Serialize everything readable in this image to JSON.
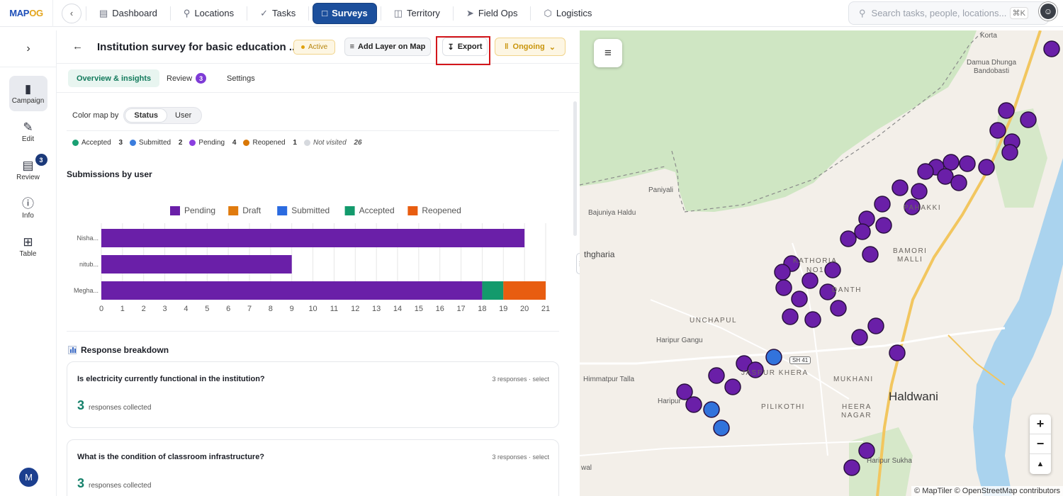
{
  "app": {
    "logo_a": "MAP",
    "logo_b": "OG"
  },
  "nav": {
    "items": [
      {
        "label": "Dashboard",
        "icon": "chart-bar-icon"
      },
      {
        "label": "Locations",
        "icon": "pin-icon"
      },
      {
        "label": "Tasks",
        "icon": "check-icon"
      },
      {
        "label": "Surveys",
        "icon": "clipboard-icon",
        "active": true
      },
      {
        "label": "Territory",
        "icon": "map-icon"
      },
      {
        "label": "Field Ops",
        "icon": "send-icon"
      },
      {
        "label": "Logistics",
        "icon": "box-icon"
      }
    ],
    "search_placeholder": "Search tasks, people, locations...",
    "shortcut": "⌘K"
  },
  "rail": {
    "items": [
      {
        "label": "Campaign",
        "icon": "clipboard-icon",
        "active": true
      },
      {
        "label": "Edit",
        "icon": "edit-icon"
      },
      {
        "label": "Review",
        "icon": "document-icon",
        "badge": "3"
      },
      {
        "label": "Info",
        "icon": "info-icon"
      },
      {
        "label": "Table",
        "icon": "grid-icon"
      }
    ],
    "user_initial": "M"
  },
  "survey": {
    "title": "Institution survey for basic education ...",
    "status": "Active",
    "add_layer": "Add Layer on Map",
    "export": "Export",
    "phase": "Ongoing"
  },
  "tabs": [
    {
      "label": "Overview & insights",
      "active": true
    },
    {
      "label": "Review",
      "badge": "3"
    },
    {
      "label": "Settings"
    }
  ],
  "colorby": {
    "label": "Color map by",
    "options": [
      "Status",
      "User"
    ],
    "selected": "Status"
  },
  "status_legend": [
    {
      "label": "Accepted",
      "count": "3",
      "color": "#1aa073"
    },
    {
      "label": "Submitted",
      "count": "2",
      "color": "#3b7ddd"
    },
    {
      "label": "Pending",
      "count": "4",
      "color": "#8b3fe0"
    },
    {
      "label": "Reopened",
      "count": "1",
      "color": "#d97706"
    },
    {
      "label": "Not visited",
      "count": "26",
      "color": "#d6d9de"
    }
  ],
  "submissions_title": "Submissions by user",
  "chart_data": {
    "type": "bar",
    "orientation": "horizontal",
    "stacked": true,
    "categories": [
      "Nisha...",
      "nitub...",
      "Megha..."
    ],
    "series": [
      {
        "name": "Pending",
        "color": "#6a1fa8",
        "values": [
          20,
          9,
          18
        ]
      },
      {
        "name": "Draft",
        "color": "#e07b0e",
        "values": [
          0,
          0,
          0
        ]
      },
      {
        "name": "Submitted",
        "color": "#2b6be0",
        "values": [
          0,
          0,
          0
        ]
      },
      {
        "name": "Accepted",
        "color": "#139a6c",
        "values": [
          0,
          0,
          1
        ]
      },
      {
        "name": "Reopened",
        "color": "#e85d10",
        "values": [
          0,
          0,
          2
        ]
      }
    ],
    "xlim": [
      0,
      21
    ],
    "xticks": [
      0,
      1,
      2,
      3,
      4,
      5,
      6,
      7,
      8,
      9,
      10,
      11,
      12,
      13,
      14,
      15,
      16,
      17,
      18,
      19,
      20,
      21
    ],
    "grid": true,
    "legend": "top"
  },
  "breakdown": {
    "title": "Response breakdown",
    "questions": [
      {
        "text": "Is electricity currently functional in the institution?",
        "meta": "3 responses · select",
        "count": "3",
        "count_label": "responses collected"
      },
      {
        "text": "What is the condition of classroom infrastructure?",
        "meta": "3 responses · select",
        "count": "3",
        "count_label": "responses collected"
      }
    ]
  },
  "map": {
    "labels": {
      "korta": "Korta",
      "damua": "Damua Dhunga",
      "bandobasti": "Bandobasti",
      "paniyali": "Paniyali",
      "bajuniya": "Bajuniya Haldu",
      "thgharia": "thgharia",
      "pahakki": "PAHAKKI",
      "kathoria": "KATHORIA",
      "no1": "NO1",
      "bamori": "BAMORI",
      "malli": "MALLI",
      "danth": "DANTH",
      "unchapul": "UNCHAPUL",
      "haripur_gangu": "Haripur Gangu",
      "sh41": "SH 41",
      "himmatpur": "Himmatpur Talla",
      "jaspur": "JASPUR KHERA",
      "mukhani": "MUKHANI",
      "haripur": "Haripur",
      "pilikothi": "PILIKOTHI",
      "heera": "HEERA",
      "nagar": "NAGAR",
      "haldwani": "Haldwani",
      "haripur_sukha": "Haripur Sukha",
      "wal": "wal"
    },
    "attribution": "© MapTiler © OpenStreetMap contributors",
    "zoom_in": "+",
    "zoom_out": "−",
    "compass": "▲"
  }
}
